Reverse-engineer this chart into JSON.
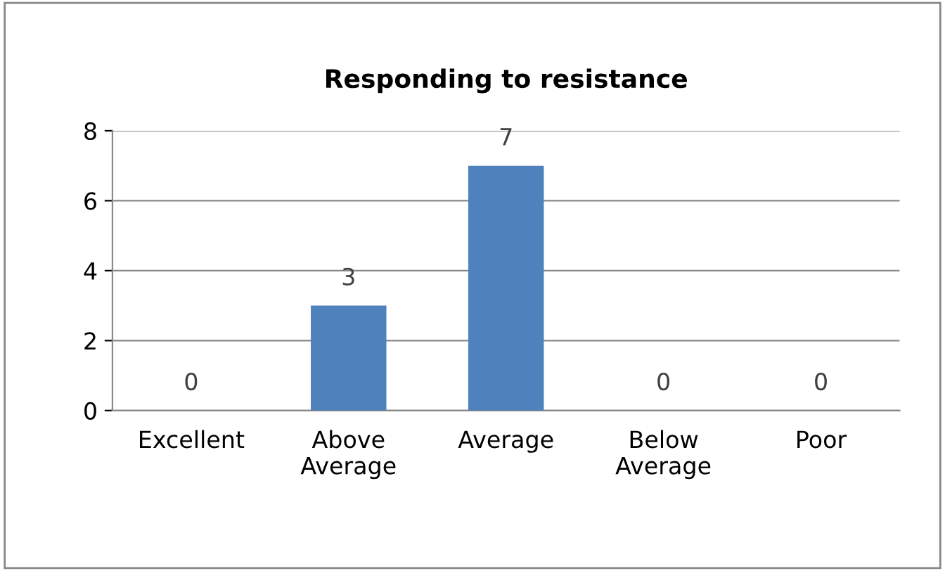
{
  "chart_data": {
    "type": "bar",
    "title": "Responding to resistance",
    "categories": [
      "Excellent",
      "Above Average",
      "Average",
      "Below Average",
      "Poor"
    ],
    "values": [
      0,
      3,
      7,
      0,
      0
    ],
    "color": "#4f81bd",
    "ylim": [
      0,
      8
    ],
    "yticks": [
      0,
      2,
      4,
      6,
      8
    ],
    "grid": "y",
    "data_labels": true
  }
}
